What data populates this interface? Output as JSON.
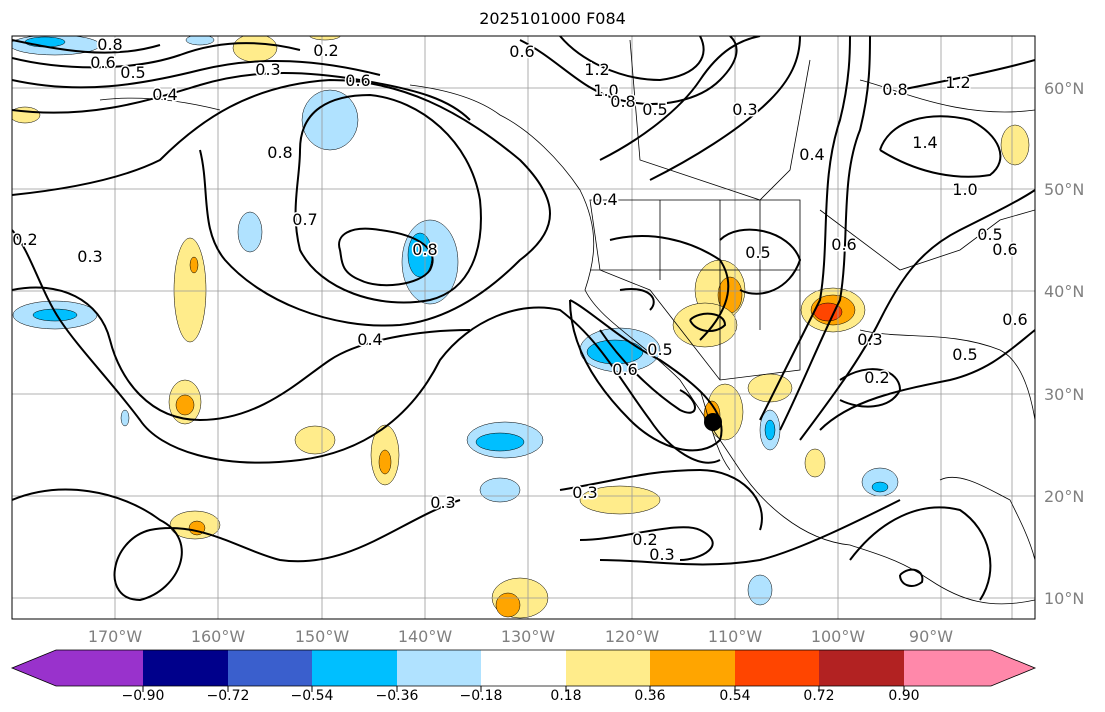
{
  "title": "2025101000 F084",
  "map": {
    "lon_ticks": [
      "170°W",
      "160°W",
      "150°W",
      "140°W",
      "130°W",
      "120°W",
      "110°W",
      "100°W",
      "90°W"
    ],
    "lat_ticks": [
      "60°N",
      "50°N",
      "40°N",
      "30°N",
      "20°N",
      "10°N"
    ],
    "contour_labels": [
      "0.8",
      "0.6",
      "0.5",
      "0.4",
      "0.3",
      "0.2",
      "0.6",
      "0.6",
      "0.8",
      "0.7",
      "0.8",
      "0.2",
      "0.3",
      "0.4",
      "0.3",
      "0.3",
      "0.2",
      "0.3",
      "1.2",
      "1.0",
      "0.8",
      "0.5",
      "0.3",
      "0.4",
      "0.5",
      "0.6",
      "0.8",
      "1.2",
      "1.4",
      "1.0",
      "0.5",
      "0.6",
      "0.6",
      "0.5",
      "0.3",
      "0.2",
      "0.6",
      "0.4",
      "0.5"
    ],
    "marker": "storm-center-dot"
  },
  "colorbar": {
    "colors": [
      "#9932CC",
      "#00008B",
      "#3A5FCD",
      "#00BFFF",
      "#B0E2FF",
      "#FFFFFF",
      "#FFEC8B",
      "#FFA500",
      "#FF4500",
      "#B22222",
      "#FF88AA"
    ],
    "tick_labels": [
      "−0.90",
      "−0.72",
      "−0.54",
      "−0.36",
      "−0.18",
      "0.18",
      "0.36",
      "0.54",
      "0.72",
      "0.90"
    ]
  }
}
